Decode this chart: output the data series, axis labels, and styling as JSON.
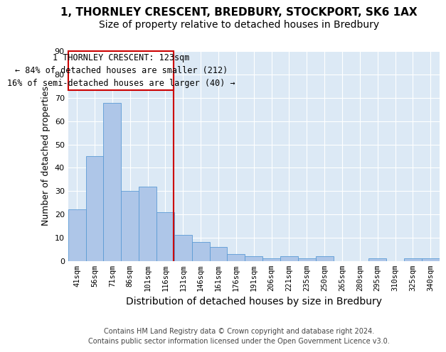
{
  "title": "1, THORNLEY CRESCENT, BREDBURY, STOCKPORT, SK6 1AX",
  "subtitle": "Size of property relative to detached houses in Bredbury",
  "xlabel": "Distribution of detached houses by size in Bredbury",
  "ylabel": "Number of detached properties",
  "footer_line1": "Contains HM Land Registry data © Crown copyright and database right 2024.",
  "footer_line2": "Contains public sector information licensed under the Open Government Licence v3.0.",
  "categories": [
    "41sqm",
    "56sqm",
    "71sqm",
    "86sqm",
    "101sqm",
    "116sqm",
    "131sqm",
    "146sqm",
    "161sqm",
    "176sqm",
    "191sqm",
    "206sqm",
    "221sqm",
    "235sqm",
    "250sqm",
    "265sqm",
    "280sqm",
    "295sqm",
    "310sqm",
    "325sqm",
    "340sqm"
  ],
  "values": [
    22,
    45,
    68,
    30,
    32,
    21,
    11,
    8,
    6,
    3,
    2,
    1,
    2,
    1,
    2,
    0,
    0,
    1,
    0,
    1,
    1
  ],
  "bar_color": "#aec6e8",
  "bar_edge_color": "#5b9bd5",
  "background_color": "#dce9f5",
  "grid_color": "#ffffff",
  "annotation_text_line1": "1 THORNLEY CRESCENT: 123sqm",
  "annotation_text_line2": "← 84% of detached houses are smaller (212)",
  "annotation_text_line3": "16% of semi-detached houses are larger (40) →",
  "annotation_box_color": "#cc0000",
  "vline_color": "#cc0000",
  "ylim": [
    0,
    90
  ],
  "title_fontsize": 11,
  "subtitle_fontsize": 10,
  "xlabel_fontsize": 10,
  "ylabel_fontsize": 9,
  "tick_fontsize": 7.5,
  "annotation_fontsize": 8.5,
  "footer_fontsize": 7
}
